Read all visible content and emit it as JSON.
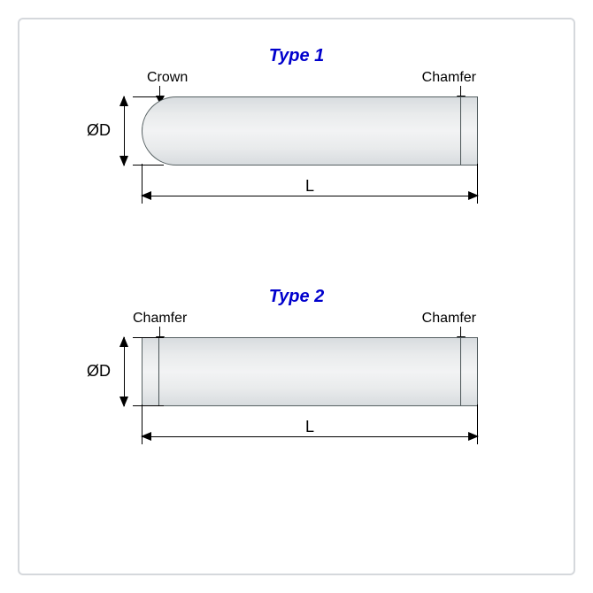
{
  "type1": {
    "title": "Type 1",
    "left_feature": "Crown",
    "right_feature": "Chamfer",
    "dim_d": "ØD",
    "dim_l": "L",
    "pin_color_light": "#f2f3f4",
    "pin_color_dark": "#d8dcdf",
    "outline_color": "#566062"
  },
  "type2": {
    "title": "Type 2",
    "left_feature": "Chamfer",
    "right_feature": "Chamfer",
    "dim_d": "ØD",
    "dim_l": "L",
    "pin_color_light": "#f2f3f4",
    "pin_color_dark": "#d8dcdf",
    "outline_color": "#566062"
  },
  "frame_border_color": "#d5d8dc",
  "title_color": "#0000cd",
  "label_fontsize": 16,
  "title_fontsize": 20,
  "dim_fontsize": 18
}
